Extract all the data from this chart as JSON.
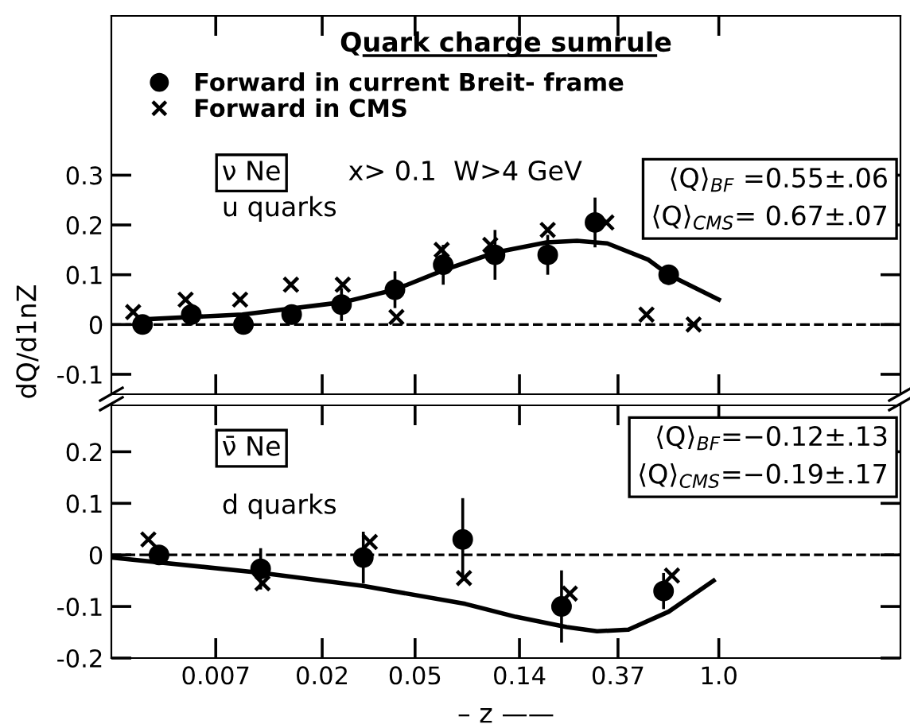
{
  "chart_data": [
    {
      "type": "scatter",
      "title": "Quark charge sumrule",
      "ylabel": "dQ/d1nZ",
      "log": "x",
      "xlim": [
        0.0025,
        6.0
      ],
      "xticks": [
        0.007,
        0.02,
        0.05,
        0.14,
        0.37,
        1.0
      ],
      "ylim": [
        -0.14,
        0.62
      ],
      "yticks": [
        -0.1,
        0,
        0.1,
        0.2,
        0.3
      ],
      "tick_labels": "y",
      "legend": "top left",
      "grid": false,
      "series": [
        {
          "name": "Forward in current Breit- frame",
          "marker": "circle",
          "color": "#000000",
          "x": [
            0.0034,
            0.0055,
            0.0092,
            0.0148,
            0.0242,
            0.041,
            0.066,
            0.11,
            0.185,
            0.295,
            0.61
          ],
          "values": [
            0.0,
            0.02,
            0.0,
            0.02,
            0.04,
            0.07,
            0.12,
            0.14,
            0.14,
            0.205,
            0.1
          ],
          "errors": [
            0.01,
            0.022,
            0.015,
            0.02,
            0.033,
            0.037,
            0.04,
            0.05,
            0.04,
            0.05,
            0.02
          ]
        },
        {
          "name": "Forward in CMS",
          "marker": "cross",
          "color": "#000000",
          "x": [
            0.0031,
            0.0052,
            0.0089,
            0.0147,
            0.0245,
            0.0416,
            0.065,
            0.105,
            0.185,
            0.33,
            0.49,
            0.78
          ],
          "values": [
            0.025,
            0.05,
            0.05,
            0.08,
            0.08,
            0.015,
            0.15,
            0.16,
            0.19,
            0.205,
            0.02,
            0.0
          ]
        },
        {
          "type": "line",
          "marker": "none",
          "color": "#000000",
          "x": [
            0.0033,
            0.0091,
            0.0247,
            0.041,
            0.067,
            0.111,
            0.183,
            0.247,
            0.333,
            0.5,
            0.61,
            1.0
          ],
          "values": [
            0.01,
            0.02,
            0.045,
            0.07,
            0.11,
            0.145,
            0.165,
            0.168,
            0.163,
            0.13,
            0.1,
            0.05
          ]
        }
      ],
      "ref_lines": [
        {
          "axis": "y",
          "value": 0,
          "label": null,
          "line_style": "dashed",
          "color": "#000000"
        }
      ],
      "annotations": [
        "ν Ne",
        "x> 0.1  W>4 GeV",
        "u quarks",
        "⟨Q⟩$_{BF}$ =0.55±.06",
        "⟨Q⟩$_{CMS}$= 0.67±.07"
      ]
    },
    {
      "type": "scatter",
      "xlabel": "– z ——",
      "log": "x",
      "xlim": [
        0.0025,
        6.0
      ],
      "xticks": [
        0.007,
        0.02,
        0.05,
        0.14,
        0.37,
        {
          "value": 1,
          "label": "1.0"
        }
      ],
      "ylim": [
        -0.2,
        0.29
      ],
      "yticks": [
        -0.2,
        -0.1,
        0,
        0.1,
        0.2
      ],
      "grid": false,
      "series": [
        {
          "marker": "circle",
          "color": "#000000",
          "x": [
            0.004,
            0.0109,
            0.03,
            0.08,
            0.212,
            0.58
          ],
          "values": [
            0.0,
            -0.027,
            -0.005,
            0.03,
            -0.1,
            -0.07
          ],
          "errors": [
            0.015,
            0.04,
            0.05,
            0.08,
            0.07,
            0.035
          ]
        },
        {
          "marker": "cross",
          "color": "#000000",
          "x": [
            0.0036,
            0.0111,
            0.032,
            0.081,
            0.23,
            0.63
          ],
          "values": [
            0.03,
            -0.055,
            0.025,
            -0.045,
            -0.075,
            -0.04
          ]
        },
        {
          "type": "line",
          "marker": "none",
          "color": "#000000",
          "x": [
            0.0025,
            0.0111,
            0.03,
            0.082,
            0.135,
            0.223,
            0.301,
            0.41,
            0.61,
            0.95
          ],
          "values": [
            -0.005,
            -0.035,
            -0.06,
            -0.095,
            -0.12,
            -0.14,
            -0.148,
            -0.145,
            -0.11,
            -0.05
          ]
        }
      ],
      "ref_lines": [
        {
          "axis": "y",
          "value": 0,
          "label": null,
          "line_style": "dashed",
          "color": "#000000"
        }
      ],
      "annotations": [
        "ν̄ Ne",
        "d quarks",
        "⟨Q⟩$_{BF}$=−0.12±.13",
        "⟨Q⟩$_{CMS}$=−0.19±.17"
      ]
    }
  ]
}
